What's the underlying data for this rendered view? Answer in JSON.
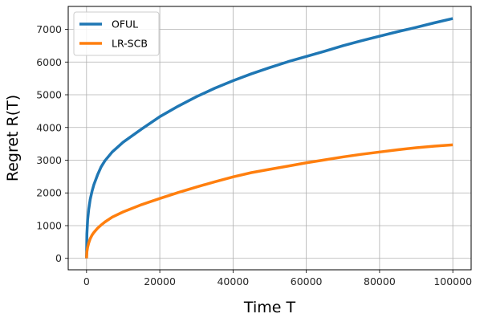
{
  "chart_data": {
    "type": "line",
    "title": "",
    "xlabel": "Time T",
    "ylabel": "Regret R(T)",
    "xlim": [
      -5000,
      105000
    ],
    "ylim": [
      -350,
      7700
    ],
    "xticks": [
      0,
      20000,
      40000,
      60000,
      80000,
      100000
    ],
    "yticks": [
      0,
      1000,
      2000,
      3000,
      4000,
      5000,
      6000,
      7000
    ],
    "grid": true,
    "legend_position": "upper left",
    "x": [
      0,
      100,
      300,
      600,
      1000,
      1500,
      2000,
      3000,
      4000,
      5000,
      7000,
      10000,
      15000,
      20000,
      25000,
      30000,
      35000,
      40000,
      45000,
      50000,
      55000,
      60000,
      65000,
      70000,
      75000,
      80000,
      85000,
      90000,
      95000,
      100000
    ],
    "series": [
      {
        "name": "OFUL",
        "color": "#1f77b4",
        "values": [
          0,
          750,
          1180,
          1500,
          1800,
          2050,
          2250,
          2550,
          2800,
          2980,
          3250,
          3550,
          3950,
          4330,
          4650,
          4940,
          5200,
          5430,
          5640,
          5830,
          6010,
          6170,
          6330,
          6500,
          6650,
          6790,
          6930,
          7060,
          7200,
          7330
        ]
      },
      {
        "name": "LR-SCB",
        "color": "#ff7f0e",
        "values": [
          0,
          200,
          340,
          470,
          600,
          710,
          790,
          920,
          1020,
          1110,
          1260,
          1420,
          1640,
          1830,
          2010,
          2180,
          2340,
          2490,
          2620,
          2720,
          2820,
          2920,
          3010,
          3100,
          3180,
          3250,
          3320,
          3380,
          3430,
          3470
        ]
      }
    ]
  }
}
